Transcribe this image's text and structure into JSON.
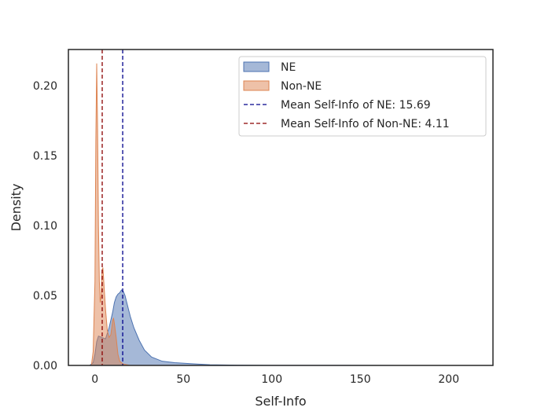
{
  "chart_data": {
    "type": "area",
    "title": "",
    "xlabel": "Self-Info",
    "ylabel": "Density",
    "xlim": [
      -15,
      225
    ],
    "ylim": [
      0,
      0.226
    ],
    "grid": false,
    "legend_position": "top-right",
    "x_ticks": [
      0,
      50,
      100,
      150,
      200
    ],
    "x_tick_labels": [
      "0",
      "50",
      "100",
      "150",
      "200"
    ],
    "y_ticks": [
      0.0,
      0.05,
      0.1,
      0.15,
      0.2
    ],
    "y_tick_labels": [
      "0.00",
      "0.05",
      "0.10",
      "0.15",
      "0.20"
    ],
    "series": [
      {
        "name": "NE",
        "color": "#4c72b0",
        "points": [
          [
            -3,
            0
          ],
          [
            -1,
            0.002
          ],
          [
            0,
            0.008
          ],
          [
            1,
            0.017
          ],
          [
            2,
            0.021
          ],
          [
            4,
            0.02
          ],
          [
            6,
            0.019
          ],
          [
            8,
            0.027
          ],
          [
            10,
            0.038
          ],
          [
            11,
            0.045
          ],
          [
            12,
            0.049
          ],
          [
            13,
            0.051
          ],
          [
            14,
            0.052
          ],
          [
            15,
            0.054
          ],
          [
            16,
            0.053
          ],
          [
            17,
            0.05
          ],
          [
            18,
            0.045
          ],
          [
            20,
            0.035
          ],
          [
            22,
            0.027
          ],
          [
            25,
            0.018
          ],
          [
            28,
            0.011
          ],
          [
            32,
            0.006
          ],
          [
            38,
            0.003
          ],
          [
            45,
            0.002
          ],
          [
            55,
            0.0012
          ],
          [
            65,
            0.0005
          ],
          [
            80,
            0.0002
          ],
          [
            100,
            0.0001
          ],
          [
            140,
            5e-05
          ],
          [
            210,
            0
          ]
        ]
      },
      {
        "name": "Non-NE",
        "color": "#dd8452",
        "points": [
          [
            -2,
            0
          ],
          [
            -1,
            0.01
          ],
          [
            0,
            0.06
          ],
          [
            0.5,
            0.16
          ],
          [
            1,
            0.216
          ],
          [
            1.5,
            0.17
          ],
          [
            2,
            0.1
          ],
          [
            2.5,
            0.06
          ],
          [
            3,
            0.045
          ],
          [
            3.5,
            0.05
          ],
          [
            4,
            0.068
          ],
          [
            4.5,
            0.07
          ],
          [
            5,
            0.06
          ],
          [
            6,
            0.04
          ],
          [
            7,
            0.025
          ],
          [
            8,
            0.02
          ],
          [
            9,
            0.022
          ],
          [
            10,
            0.032
          ],
          [
            10.5,
            0.034
          ],
          [
            11,
            0.03
          ],
          [
            12,
            0.02
          ],
          [
            13,
            0.008
          ],
          [
            14,
            0.003
          ],
          [
            16,
            0.001
          ],
          [
            20,
            0
          ]
        ]
      }
    ],
    "mean_lines": [
      {
        "name": "Mean Self-Info of NE: 15.69",
        "value": 15.69,
        "color": "#00008b"
      },
      {
        "name": "Mean Self-Info of Non-NE: 4.11",
        "value": 4.11,
        "color": "#8b0000"
      }
    ]
  }
}
